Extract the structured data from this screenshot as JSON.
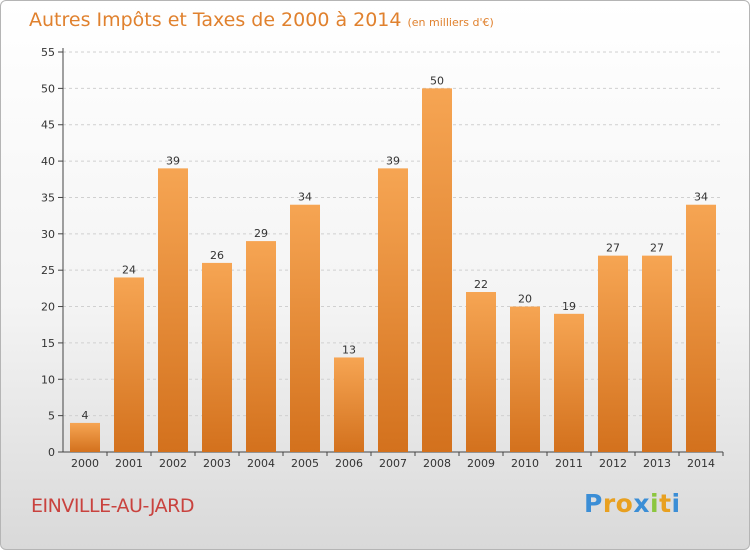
{
  "chart_data": {
    "type": "bar",
    "title": "Autres Impôts et Taxes de 2000 à 2014",
    "subtitle": "(en milliers d'€)",
    "categories": [
      "2000",
      "2001",
      "2002",
      "2003",
      "2004",
      "2005",
      "2006",
      "2007",
      "2008",
      "2009",
      "2010",
      "2011",
      "2012",
      "2013",
      "2014"
    ],
    "values": [
      4,
      24,
      39,
      26,
      29,
      34,
      13,
      39,
      50,
      22,
      20,
      19,
      27,
      27,
      34
    ],
    "ylim": [
      0,
      55
    ],
    "yticks": [
      0,
      5,
      10,
      15,
      20,
      25,
      30,
      35,
      40,
      45,
      50,
      55
    ],
    "grid": "horizontal-dashed",
    "bar_color_top": "#f6a553",
    "bar_color_bottom": "#d3711d"
  },
  "commune": "EINVILLE-AU-JARD",
  "logo": {
    "text": "Proxiti",
    "letters": [
      "P",
      "r",
      "o",
      "x",
      "i",
      "t",
      "i"
    ],
    "colors": [
      "#3b8ed6",
      "#e8a020",
      "#e8a020",
      "#3b8ed6",
      "#8cc63f",
      "#e8a020",
      "#3b8ed6"
    ]
  },
  "colors": {
    "title": "#e0812e",
    "commune": "#c9423e"
  }
}
